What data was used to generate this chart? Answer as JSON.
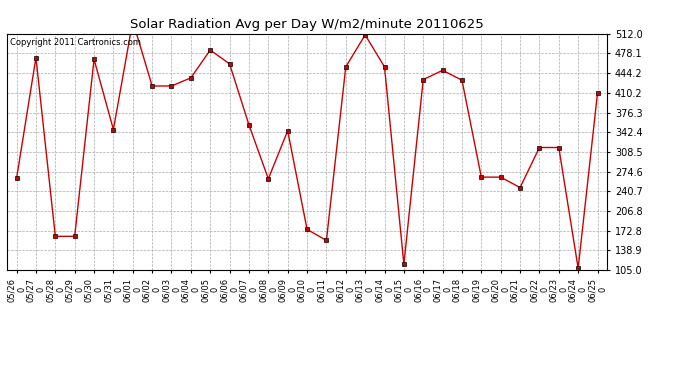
{
  "title": "Solar Radiation Avg per Day W/m2/minute 20110625",
  "copyright": "Copyright 2011 Cartronics.com",
  "dates": [
    "05/26\n0",
    "05/27\n0",
    "05/28\n0",
    "05/29\n0",
    "05/30\n0",
    "05/31\n0",
    "06/01\n0",
    "06/02\n0",
    "06/03\n0",
    "06/04\n0",
    "06/05\n0",
    "06/06\n0",
    "06/07\n0",
    "06/08\n0",
    "06/09\n0",
    "06/10\n0",
    "06/11\n0",
    "06/12\n0",
    "06/13\n0",
    "06/14\n0",
    "06/15\n0",
    "06/16\n0",
    "06/17\n0",
    "06/18\n0",
    "06/19\n0",
    "06/20\n0",
    "06/21\n0",
    "06/22\n0",
    "06/23\n0",
    "06/24\n0",
    "06/25\n0"
  ],
  "values": [
    263,
    471,
    163,
    163,
    468,
    347,
    534,
    422,
    422,
    436,
    484,
    460,
    355,
    262,
    345,
    175,
    156,
    455,
    510,
    455,
    115,
    433,
    449,
    432,
    265,
    265,
    247,
    316,
    316,
    108,
    410
  ],
  "line_color": "#cc0000",
  "marker": "s",
  "marker_size": 2.5,
  "bg_color": "#ffffff",
  "grid_color": "#aaaaaa",
  "ylim_min": 105.0,
  "ylim_max": 512.0,
  "ytick_values": [
    105.0,
    138.9,
    172.8,
    206.8,
    240.7,
    274.6,
    308.5,
    342.4,
    376.3,
    410.2,
    444.2,
    478.1,
    512.0
  ]
}
